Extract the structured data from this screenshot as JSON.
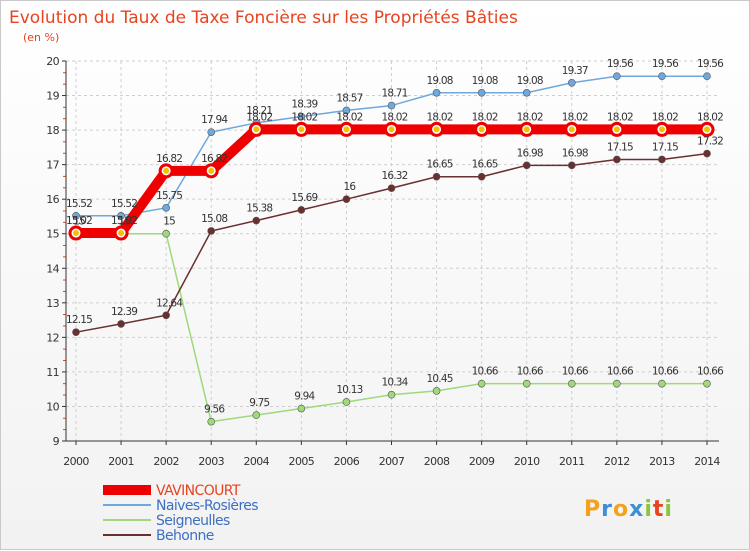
{
  "chart_data": {
    "type": "line",
    "title": "Evolution du Taux de Taxe Foncière sur les Propriétés Bâties",
    "ylabel": "(en %)",
    "xlabel": "",
    "x": [
      "2000",
      "2001",
      "2002",
      "2003",
      "2004",
      "2005",
      "2006",
      "2007",
      "2008",
      "2009",
      "2010",
      "2011",
      "2012",
      "2013",
      "2014"
    ],
    "ylim": [
      9,
      20
    ],
    "yticks": [
      9,
      10,
      11,
      12,
      13,
      14,
      15,
      16,
      17,
      18,
      19,
      20
    ],
    "series": [
      {
        "name": "VAVINCOURT",
        "color": "#ee0000",
        "values": [
          15.02,
          15.02,
          16.82,
          16.82,
          18.02,
          18.02,
          18.02,
          18.02,
          18.02,
          18.02,
          18.02,
          18.02,
          18.02,
          18.02,
          18.02
        ],
        "labels": [
          "15.02",
          "15.02",
          "16.82",
          "16.82",
          "18.02",
          "18.02",
          "18.02",
          "18.02",
          "18.02",
          "18.02",
          "18.02",
          "18.02",
          "18.02",
          "18.02",
          "18.02"
        ]
      },
      {
        "name": "Naives-Rosières",
        "color": "#6fa8dc",
        "values": [
          15.52,
          15.52,
          15.75,
          17.94,
          18.21,
          18.39,
          18.57,
          18.71,
          19.08,
          19.08,
          19.08,
          19.37,
          19.56,
          19.56,
          19.56
        ],
        "labels": [
          "15.52",
          "15.52",
          "15.75",
          "17.94",
          "18.21",
          "18.39",
          "18.57",
          "18.71",
          "19.08",
          "19.08",
          "19.08",
          "19.37",
          "19.56",
          "19.56",
          "19.56"
        ]
      },
      {
        "name": "Seigneulles",
        "color": "#9fd97a",
        "values": [
          15,
          15,
          15,
          9.56,
          9.75,
          9.94,
          10.13,
          10.34,
          10.45,
          10.66,
          10.66,
          10.66,
          10.66,
          10.66,
          10.66
        ],
        "labels": [
          "15",
          "15",
          "15",
          "9.56",
          "9.75",
          "9.94",
          "10.13",
          "10.34",
          "10.45",
          "10.66",
          "10.66",
          "10.66",
          "10.66",
          "10.66",
          "10.66"
        ]
      },
      {
        "name": "Behonne",
        "color": "#6b2f2f",
        "values": [
          12.15,
          12.39,
          12.64,
          15.08,
          15.38,
          15.69,
          16,
          16.32,
          16.65,
          16.65,
          16.98,
          16.98,
          17.15,
          17.15,
          17.32
        ],
        "labels": [
          "12.15",
          "12.39",
          "12.64",
          "15.08",
          "15.38",
          "15.69",
          "16",
          "16.32",
          "16.65",
          "16.65",
          "16.98",
          "16.98",
          "17.15",
          "17.15",
          "17.32"
        ]
      }
    ],
    "legend_position": "bottom-left"
  },
  "branding": {
    "logo_letters": [
      "P",
      "r",
      "o",
      "x",
      "i",
      "t",
      "i"
    ],
    "logo_colors": [
      "#f4a11d",
      "#3d8fd6",
      "#f4a11d",
      "#3d8fd6",
      "#8cc63f",
      "#e8431e",
      "#8cc63f"
    ]
  }
}
